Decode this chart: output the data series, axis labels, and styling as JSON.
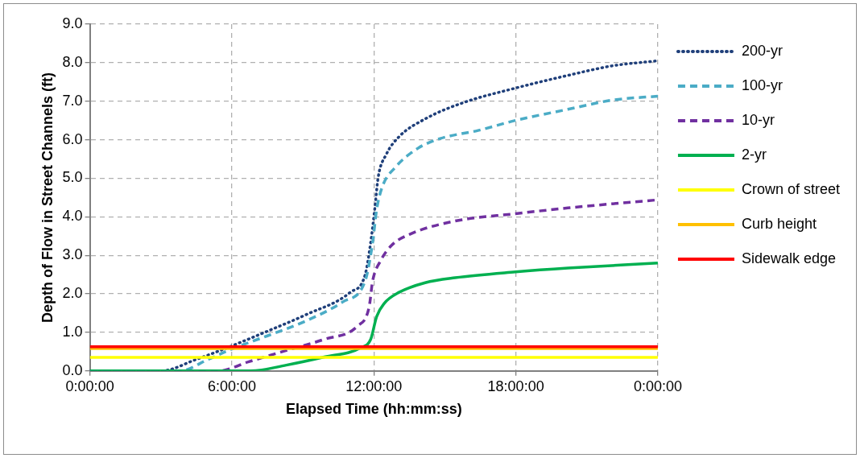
{
  "chart_data": {
    "type": "line",
    "xlabel": "Elapsed Time (hh:mm:ss)",
    "ylabel": "Depth of Flow in Street Channels (ft)",
    "xlim": [
      "2000-01-01T00:00",
      "2000-01-02T00:00"
    ],
    "xticks": [
      {
        "value": "2000-01-01T00:00",
        "label": "0:00:00"
      },
      {
        "value": "2000-01-01T06:00",
        "label": "6:00:00"
      },
      {
        "value": "2000-01-01T12:00",
        "label": "12:00:00"
      },
      {
        "value": "2000-01-01T18:00",
        "label": "18:00:00"
      },
      {
        "value": "2000-01-02T00:00",
        "label": "0:00:00"
      }
    ],
    "ylim": [
      0,
      9
    ],
    "yticks": [
      {
        "value": 0,
        "label": "0.0"
      },
      {
        "value": 1,
        "label": "1.0"
      },
      {
        "value": 2,
        "label": "2.0"
      },
      {
        "value": 3,
        "label": "3.0"
      },
      {
        "value": 4,
        "label": "4.0"
      },
      {
        "value": 5,
        "label": "5.0"
      },
      {
        "value": 6,
        "label": "6.0"
      },
      {
        "value": 7,
        "label": "7.0"
      },
      {
        "value": 8,
        "label": "8.0"
      },
      {
        "value": 9,
        "label": "9.0"
      }
    ],
    "grid": true,
    "legend": "right",
    "marker": "none",
    "series": [
      {
        "name": "200-yr",
        "color": "#1f3f7a",
        "line_style": "dotted",
        "x": [
          "2000-01-01T00:00",
          "2000-01-01T03:00",
          "2000-01-01T04:30",
          "2000-01-01T06:00",
          "2000-01-01T07:30",
          "2000-01-01T09:06",
          "2000-01-01T11:00",
          "2000-01-01T11:38",
          "2000-01-01T11:52",
          "2000-01-01T12:02",
          "2000-01-01T12:11",
          "2000-01-01T12:31",
          "2000-01-01T13:04",
          "2000-01-01T14:10",
          "2000-01-01T15:46",
          "2000-01-01T17:59",
          "2000-01-01T20:12",
          "2000-01-01T22:06",
          "2000-01-02T00:00"
        ],
        "values": [
          0,
          0,
          0.3,
          0.65,
          1.03,
          1.45,
          2.04,
          2.5,
          3.34,
          4.18,
          5.03,
          5.61,
          6.08,
          6.54,
          6.96,
          7.34,
          7.67,
          7.92,
          8.05
        ]
      },
      {
        "name": "100-yr",
        "color": "#4bacc6",
        "line_style": "dashed",
        "x": [
          "2000-01-01T00:00",
          "2000-01-01T03:48",
          "2000-01-01T05:00",
          "2000-01-01T06:00",
          "2000-01-01T07:30",
          "2000-01-01T09:06",
          "2000-01-01T10:41",
          "2000-01-01T11:38",
          "2000-01-01T11:57",
          "2000-01-01T12:07",
          "2000-01-01T12:21",
          "2000-01-01T12:54",
          "2000-01-01T13:52",
          "2000-01-01T14:48",
          "2000-01-01T16:24",
          "2000-01-01T17:59",
          "2000-01-01T20:12",
          "2000-01-01T22:06",
          "2000-01-02T00:00"
        ],
        "values": [
          0,
          0,
          0.3,
          0.57,
          0.91,
          1.29,
          1.79,
          2.34,
          3.34,
          4.18,
          4.77,
          5.28,
          5.78,
          6.03,
          6.24,
          6.5,
          6.79,
          7.03,
          7.13
        ]
      },
      {
        "name": "10-yr",
        "color": "#7030a0",
        "line_style": "dashed",
        "x": [
          "2000-01-01T00:00",
          "2000-01-01T05:26",
          "2000-01-01T06:43",
          "2000-01-01T08:18",
          "2000-01-01T09:54",
          "2000-01-01T11:18",
          "2000-01-01T11:48",
          "2000-01-01T11:57",
          "2000-01-01T12:16",
          "2000-01-01T12:45",
          "2000-01-01T13:32",
          "2000-01-01T15:26",
          "2000-01-01T17:59",
          "2000-01-01T20:12",
          "2000-01-02T00:00"
        ],
        "values": [
          0,
          0,
          0.24,
          0.53,
          0.82,
          1.16,
          1.66,
          2.34,
          2.84,
          3.26,
          3.55,
          3.89,
          4.08,
          4.23,
          4.44
        ]
      },
      {
        "name": "2-yr",
        "color": "#00b050",
        "line_style": "solid",
        "x": [
          "2000-01-01T00:00",
          "2000-01-01T06:48",
          "2000-01-01T08:18",
          "2000-01-01T09:54",
          "2000-01-01T11:29",
          "2000-01-01T11:52",
          "2000-01-01T12:07",
          "2000-01-01T12:26",
          "2000-01-01T13:04",
          "2000-01-01T14:10",
          "2000-01-01T15:26",
          "2000-01-01T17:59",
          "2000-01-01T20:12",
          "2000-01-02T00:00"
        ],
        "values": [
          0,
          0,
          0.15,
          0.36,
          0.61,
          0.82,
          1.41,
          1.75,
          2.04,
          2.29,
          2.42,
          2.57,
          2.67,
          2.8
        ]
      },
      {
        "name": "Crown of street",
        "color": "#ffff00",
        "line_style": "solid",
        "x": [
          "2000-01-01T00:00",
          "2000-01-02T00:00"
        ],
        "values": [
          0.35,
          0.35
        ]
      },
      {
        "name": "Curb height",
        "color": "#ffc000",
        "line_style": "solid",
        "x": [
          "2000-01-01T00:00",
          "2000-01-02T00:00"
        ],
        "values": [
          0.58,
          0.58
        ]
      },
      {
        "name": "Sidewalk edge",
        "color": "#ff0000",
        "line_style": "solid",
        "x": [
          "2000-01-01T00:00",
          "2000-01-02T00:00"
        ],
        "values": [
          0.63,
          0.63
        ]
      }
    ]
  }
}
